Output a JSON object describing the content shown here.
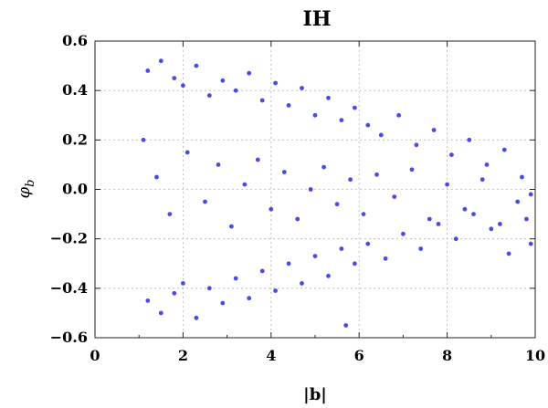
{
  "chart_data": {
    "type": "scatter",
    "title": "IH",
    "xlabel": "|b|",
    "ylabel_base": "φ",
    "ylabel_sub": "b",
    "xlim": [
      0,
      10
    ],
    "ylim": [
      -0.6,
      0.6
    ],
    "xticks": [
      0,
      2,
      4,
      6,
      8,
      10
    ],
    "yticks": [
      -0.6,
      -0.4,
      -0.2,
      0.0,
      0.2,
      0.4,
      0.6
    ],
    "xtick_labels": [
      "0",
      "2",
      "4",
      "6",
      "8",
      "10"
    ],
    "ytick_labels": [
      "−0.6",
      "−0.4",
      "−0.2",
      "0.0",
      "0.2",
      "0.4",
      "0.6"
    ],
    "grid": true,
    "marker_color": "#4a4ae8",
    "points": [
      [
        1.2,
        0.48
      ],
      [
        1.5,
        0.52
      ],
      [
        1.8,
        0.45
      ],
      [
        2.0,
        0.42
      ],
      [
        2.3,
        0.5
      ],
      [
        2.6,
        0.38
      ],
      [
        2.9,
        0.44
      ],
      [
        3.2,
        0.4
      ],
      [
        3.5,
        0.47
      ],
      [
        3.8,
        0.36
      ],
      [
        4.1,
        0.43
      ],
      [
        4.4,
        0.34
      ],
      [
        4.7,
        0.41
      ],
      [
        5.0,
        0.3
      ],
      [
        5.3,
        0.37
      ],
      [
        5.6,
        0.28
      ],
      [
        5.9,
        0.33
      ],
      [
        6.2,
        0.26
      ],
      [
        6.5,
        0.22
      ],
      [
        6.9,
        0.3
      ],
      [
        7.3,
        0.18
      ],
      [
        7.7,
        0.24
      ],
      [
        8.1,
        0.14
      ],
      [
        8.5,
        0.2
      ],
      [
        8.9,
        0.1
      ],
      [
        9.3,
        0.16
      ],
      [
        9.7,
        0.05
      ],
      [
        9.9,
        -0.02
      ],
      [
        1.1,
        0.2
      ],
      [
        1.4,
        0.05
      ],
      [
        1.7,
        -0.1
      ],
      [
        2.1,
        0.15
      ],
      [
        2.5,
        -0.05
      ],
      [
        2.8,
        0.1
      ],
      [
        3.1,
        -0.15
      ],
      [
        3.4,
        0.02
      ],
      [
        3.7,
        0.12
      ],
      [
        4.0,
        -0.08
      ],
      [
        4.3,
        0.07
      ],
      [
        4.6,
        -0.12
      ],
      [
        4.9,
        0.0
      ],
      [
        5.2,
        0.09
      ],
      [
        5.5,
        -0.06
      ],
      [
        5.8,
        0.04
      ],
      [
        6.1,
        -0.1
      ],
      [
        6.4,
        0.06
      ],
      [
        6.8,
        -0.03
      ],
      [
        7.2,
        0.08
      ],
      [
        7.6,
        -0.12
      ],
      [
        8.0,
        0.02
      ],
      [
        8.4,
        -0.08
      ],
      [
        8.8,
        0.04
      ],
      [
        9.2,
        -0.14
      ],
      [
        9.6,
        -0.05
      ],
      [
        9.9,
        -0.22
      ],
      [
        1.2,
        -0.45
      ],
      [
        1.5,
        -0.5
      ],
      [
        1.8,
        -0.42
      ],
      [
        2.0,
        -0.38
      ],
      [
        2.3,
        -0.52
      ],
      [
        2.6,
        -0.4
      ],
      [
        2.9,
        -0.46
      ],
      [
        3.2,
        -0.36
      ],
      [
        3.5,
        -0.44
      ],
      [
        3.8,
        -0.33
      ],
      [
        4.1,
        -0.41
      ],
      [
        4.4,
        -0.3
      ],
      [
        4.7,
        -0.38
      ],
      [
        5.0,
        -0.27
      ],
      [
        5.3,
        -0.35
      ],
      [
        5.6,
        -0.24
      ],
      [
        5.9,
        -0.3
      ],
      [
        6.2,
        -0.22
      ],
      [
        6.6,
        -0.28
      ],
      [
        7.0,
        -0.18
      ],
      [
        7.4,
        -0.24
      ],
      [
        7.8,
        -0.14
      ],
      [
        8.2,
        -0.2
      ],
      [
        8.6,
        -0.1
      ],
      [
        9.0,
        -0.16
      ],
      [
        9.4,
        -0.26
      ],
      [
        9.8,
        -0.12
      ],
      [
        5.7,
        -0.55
      ]
    ]
  }
}
